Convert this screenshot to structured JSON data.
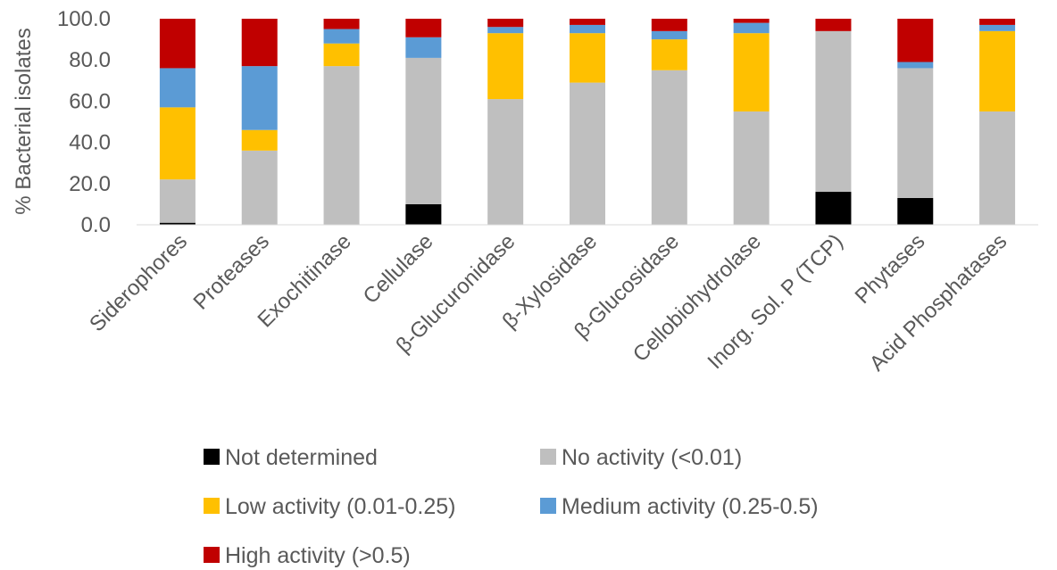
{
  "chart_data": {
    "type": "bar",
    "stacked": true,
    "ylabel": "% Bacterial isolates",
    "ylim": [
      0,
      100
    ],
    "yticks": [
      "0.0",
      "20.0",
      "40.0",
      "60.0",
      "80.0",
      "100.0"
    ],
    "grid": false,
    "legend_position": "bottom",
    "categories": [
      "Siderophores",
      "Proteases",
      "Exochitinase",
      "Cellulase",
      "β-Glucuronidase",
      "β-Xylosidase",
      "β-Glucosidase",
      "Cellobiohydrolase",
      "Inorg. Sol. P (TCP)",
      "Phytases",
      "Acid Phosphatases"
    ],
    "series": [
      {
        "name": "Not determined",
        "color": "#000000",
        "values": [
          1,
          0,
          0,
          10,
          0,
          0,
          0,
          0,
          16,
          13,
          0
        ]
      },
      {
        "name": "No activity (<0.01)",
        "color": "#bfbfbf",
        "values": [
          21,
          36,
          77,
          71,
          61,
          69,
          75,
          55,
          78,
          63,
          55
        ]
      },
      {
        "name": "Low activity (0.01-0.25)",
        "color": "#ffc000",
        "values": [
          35,
          10,
          11,
          0,
          32,
          24,
          15,
          38,
          0,
          0,
          39
        ]
      },
      {
        "name": "Medium activity (0.25-0.5)",
        "color": "#5b9bd5",
        "values": [
          19,
          31,
          7,
          10,
          3,
          4,
          4,
          5,
          0,
          3,
          3
        ]
      },
      {
        "name": "High activity (>0.5)",
        "color": "#c00000",
        "values": [
          24,
          23,
          5,
          9,
          4,
          3,
          6,
          2,
          6,
          21,
          3
        ]
      }
    ]
  }
}
